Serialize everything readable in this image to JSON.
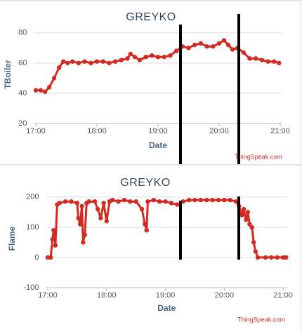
{
  "chart_data": [
    {
      "type": "line",
      "title": "GREYKO",
      "xlabel": "Date",
      "ylabel": "TBoiler",
      "credit": "ThingSpeak.com",
      "grid": true,
      "xlim": [
        16.97,
        21.03
      ],
      "ylim": [
        20,
        85
      ],
      "xticks": [
        {
          "value": 17,
          "label": "17:00"
        },
        {
          "value": 18,
          "label": "18:00"
        },
        {
          "value": 19,
          "label": "19:00"
        },
        {
          "value": 20,
          "label": "20:00"
        },
        {
          "value": 21,
          "label": "21:00"
        }
      ],
      "yticks": [
        20,
        40,
        60,
        80
      ],
      "series": [
        {
          "color": "#d42a24",
          "x": [
            17.0,
            17.08,
            17.15,
            17.22,
            17.3,
            17.38,
            17.45,
            17.52,
            17.6,
            17.7,
            17.8,
            17.9,
            18.0,
            18.1,
            18.2,
            18.3,
            18.4,
            18.5,
            18.55,
            18.62,
            18.7,
            18.8,
            18.9,
            19.0,
            19.1,
            19.2,
            19.3,
            19.4,
            19.5,
            19.6,
            19.7,
            19.8,
            19.9,
            20.0,
            20.08,
            20.15,
            20.22,
            20.3,
            20.4,
            20.5,
            20.6,
            20.7,
            20.8,
            20.9,
            20.98
          ],
          "values": [
            42,
            42,
            41,
            44,
            50,
            57,
            61,
            60,
            61,
            60,
            61,
            60,
            61,
            61,
            60,
            61,
            62,
            63,
            66,
            64,
            62,
            64,
            65,
            64,
            64,
            65,
            68,
            71,
            70,
            72,
            73,
            71,
            71,
            73,
            75,
            72,
            69,
            70,
            67,
            63,
            63,
            62,
            61,
            61,
            60
          ]
        }
      ]
    },
    {
      "type": "line",
      "title": "GREYKO",
      "xlabel": "Date",
      "ylabel": "Flame",
      "credit": "ThingSpeak.com",
      "grid": true,
      "xlim": [
        16.97,
        21.07
      ],
      "ylim": [
        -100,
        225
      ],
      "xticks": [
        {
          "value": 17,
          "label": "17:00"
        },
        {
          "value": 18,
          "label": "18:00"
        },
        {
          "value": 19,
          "label": "19:00"
        },
        {
          "value": 20,
          "label": "20:00"
        },
        {
          "value": 21,
          "label": "21:00"
        }
      ],
      "yticks": [
        -100,
        0,
        100,
        200
      ],
      "series": [
        {
          "color": "#d42a24",
          "x": [
            17.0,
            17.05,
            17.08,
            17.1,
            17.13,
            17.16,
            17.2,
            17.3,
            17.4,
            17.5,
            17.52,
            17.55,
            17.58,
            17.6,
            17.63,
            17.66,
            17.7,
            17.8,
            17.85,
            17.9,
            17.95,
            18.0,
            18.05,
            18.1,
            18.2,
            18.3,
            18.4,
            18.5,
            18.6,
            18.65,
            18.68,
            18.7,
            18.8,
            18.9,
            19.0,
            19.1,
            19.2,
            19.3,
            19.4,
            19.5,
            19.6,
            19.7,
            19.8,
            19.9,
            20.0,
            20.1,
            20.2,
            20.25,
            20.3,
            20.33,
            20.37,
            20.4,
            20.43,
            20.47,
            20.5,
            20.53,
            20.57,
            20.7,
            20.8,
            20.9,
            21.0,
            21.05
          ],
          "values": [
            0,
            0,
            60,
            90,
            40,
            175,
            180,
            185,
            185,
            180,
            130,
            110,
            170,
            50,
            75,
            180,
            185,
            185,
            160,
            130,
            180,
            120,
            185,
            190,
            185,
            190,
            185,
            185,
            160,
            110,
            90,
            185,
            190,
            185,
            185,
            180,
            175,
            185,
            190,
            190,
            190,
            190,
            190,
            190,
            190,
            190,
            185,
            170,
            140,
            160,
            125,
            150,
            110,
            100,
            50,
            20,
            0,
            0,
            0,
            0,
            0,
            0
          ]
        }
      ]
    }
  ]
}
